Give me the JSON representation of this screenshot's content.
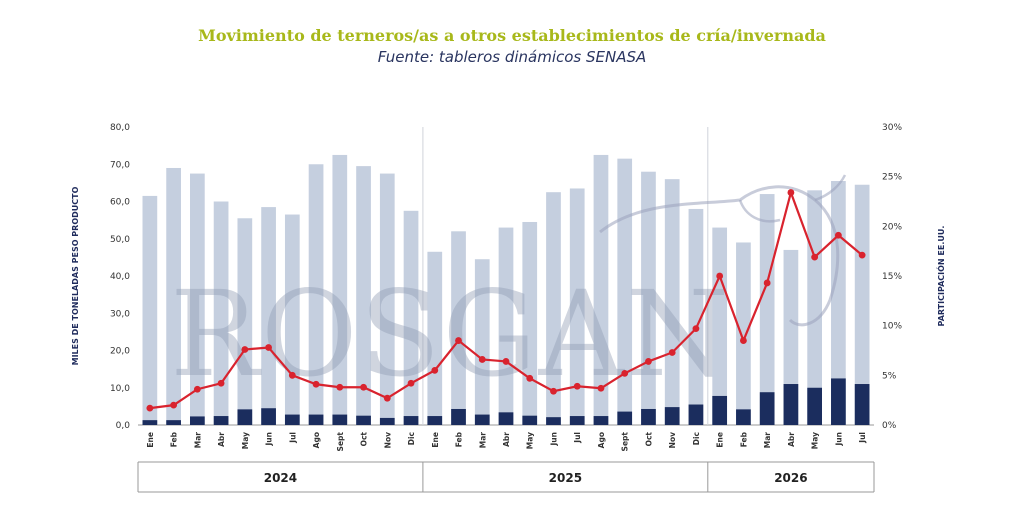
{
  "header": {
    "title": "Movimiento de terneros/as a otros establecimientos de cría/invernada",
    "subtitle": "Fuente: tableros dinámicos SENASA"
  },
  "watermark": "ROSGAN",
  "chart_data": {
    "type": "bar",
    "ylabel": "MILES DE TONELADAS PESO PRODUCTO",
    "y2label": "PARTICIPACIÓN EE.UU.",
    "ylim": [
      0,
      80
    ],
    "y2lim": [
      0,
      30
    ],
    "yticks": [
      "0,0",
      "10,0",
      "20,0",
      "30,0",
      "40,0",
      "50,0",
      "60,0",
      "70,0",
      "80,0"
    ],
    "y2ticks": [
      "0%",
      "5%",
      "10%",
      "15%",
      "20%",
      "25%",
      "30%"
    ],
    "years": [
      {
        "label": "2024",
        "months": 12
      },
      {
        "label": "2025",
        "months": 12
      },
      {
        "label": "2026",
        "months": 7
      }
    ],
    "categories": [
      "Ene",
      "Feb",
      "Mar",
      "Abr",
      "May",
      "Jun",
      "Jul",
      "Ago",
      "Sept",
      "Oct",
      "Nov",
      "Dic",
      "Ene",
      "Feb",
      "Mar",
      "Abr",
      "May",
      "Jun",
      "Jul",
      "Ago",
      "Sept",
      "Oct",
      "Nov",
      "Dic",
      "Ene",
      "Feb",
      "Mar",
      "Abr",
      "May",
      "Jun",
      "Jul"
    ],
    "series": [
      {
        "kind": "bar",
        "color": "#c5cfdf",
        "values": [
          61.5,
          69,
          67.5,
          60,
          55.5,
          58.5,
          56.5,
          70,
          72.5,
          69.5,
          67.5,
          57.5,
          46.5,
          52,
          44.5,
          53,
          54.5,
          62.5,
          63.5,
          72.5,
          71.5,
          68,
          66,
          58,
          53,
          49,
          62,
          47,
          63,
          65.5,
          64.5
        ]
      },
      {
        "kind": "bar",
        "color": "#1b2d5e",
        "values": [
          1.3,
          1.3,
          2.3,
          2.4,
          4.2,
          4.5,
          2.8,
          2.8,
          2.8,
          2.5,
          1.9,
          2.4,
          2.4,
          4.3,
          2.8,
          3.4,
          2.5,
          2.1,
          2.4,
          2.4,
          3.6,
          4.3,
          4.8,
          5.5,
          7.8,
          4.2,
          8.8,
          11,
          10,
          12.5,
          11
        ],
        "line_values": [
          1.7,
          2.0,
          3.6,
          4.2,
          7.6,
          7.8,
          5.0,
          4.1,
          3.8,
          3.8,
          2.7,
          4.2,
          5.5,
          8.5,
          6.6,
          6.4,
          4.7,
          3.4,
          3.9,
          3.7,
          5.2,
          6.4,
          7.3,
          9.7,
          15.0,
          8.5,
          14.3,
          23.4,
          16.9,
          19.1,
          17.1
        ],
        "line_color": "#d9232e"
      }
    ],
    "grid": false,
    "legend": "none"
  }
}
